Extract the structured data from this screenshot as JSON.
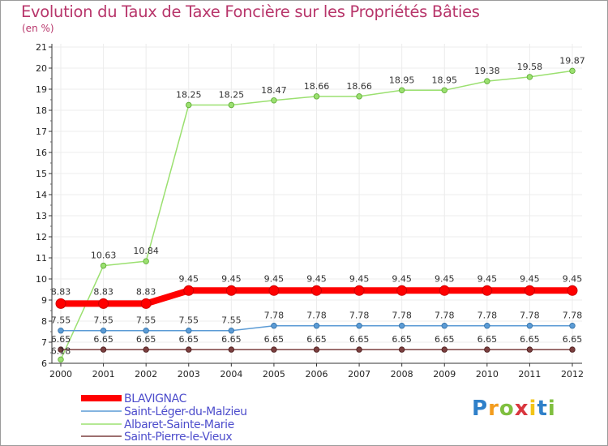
{
  "chart_data": {
    "type": "line",
    "title": "Evolution du Taux de Taxe Foncière sur les Propriétés Bâties",
    "unit_label": "(en %)",
    "x": [
      "2000",
      "2001",
      "2002",
      "2003",
      "2004",
      "2005",
      "2006",
      "2007",
      "2008",
      "2009",
      "2010",
      "2011",
      "2012"
    ],
    "ylim": [
      6,
      21
    ],
    "yticks": [
      "6",
      "7",
      "8",
      "9",
      "10",
      "11",
      "12",
      "13",
      "14",
      "15",
      "16",
      "17",
      "18",
      "19",
      "20",
      "21"
    ],
    "series": [
      {
        "name": "BLAVIGNAC",
        "color": "#ff0000",
        "values": [
          8.83,
          8.83,
          8.83,
          9.45,
          9.45,
          9.45,
          9.45,
          9.45,
          9.45,
          9.45,
          9.45,
          9.45,
          9.45
        ],
        "labels": [
          "8.83",
          "8.83",
          "8.83",
          "9.45",
          "9.45",
          "9.45",
          "9.45",
          "9.45",
          "9.45",
          "9.45",
          "9.45",
          "9.45",
          "9.45"
        ]
      },
      {
        "name": "Saint-Léger-du-Malzieu",
        "color": "#5b9bd5",
        "values": [
          7.55,
          7.55,
          7.55,
          7.55,
          7.55,
          7.78,
          7.78,
          7.78,
          7.78,
          7.78,
          7.78,
          7.78,
          7.78
        ],
        "labels": [
          "7.55",
          "7.55",
          "7.55",
          "7.55",
          "7.55",
          "7.78",
          "7.78",
          "7.78",
          "7.78",
          "7.78",
          "7.78",
          "7.78",
          "7.78"
        ]
      },
      {
        "name": "Albaret-Sainte-Marie",
        "color": "#9be070",
        "values": [
          6.18,
          10.63,
          10.84,
          18.25,
          18.25,
          18.47,
          18.66,
          18.66,
          18.95,
          18.95,
          19.38,
          19.58,
          19.87
        ],
        "labels": [
          "6.18",
          "10.63",
          "10.84",
          "18.25",
          "18.25",
          "18.47",
          "18.66",
          "18.66",
          "18.95",
          "18.95",
          "19.38",
          "19.58",
          "19.87"
        ]
      },
      {
        "name": "Saint-Pierre-le-Vieux",
        "color": "#7b3f3f",
        "values": [
          6.65,
          6.65,
          6.65,
          6.65,
          6.65,
          6.65,
          6.65,
          6.65,
          6.65,
          6.65,
          6.65,
          6.65,
          6.65
        ],
        "labels": [
          "6.65",
          "6.65",
          "6.65",
          "6.65",
          "6.65",
          "6.65",
          "6.65",
          "6.65",
          "6.65",
          "6.65",
          "6.65",
          "6.65",
          "6.65"
        ]
      }
    ],
    "legend": "bottom-left"
  },
  "logo": {
    "letters": [
      "P",
      "r",
      "o",
      "x",
      "i",
      "t",
      "i"
    ],
    "colors": [
      "#2f80c9",
      "#f39c1e",
      "#7fbf3f",
      "#d9363e",
      "#f2c418",
      "#2f80c9",
      "#7fbf3f"
    ]
  }
}
